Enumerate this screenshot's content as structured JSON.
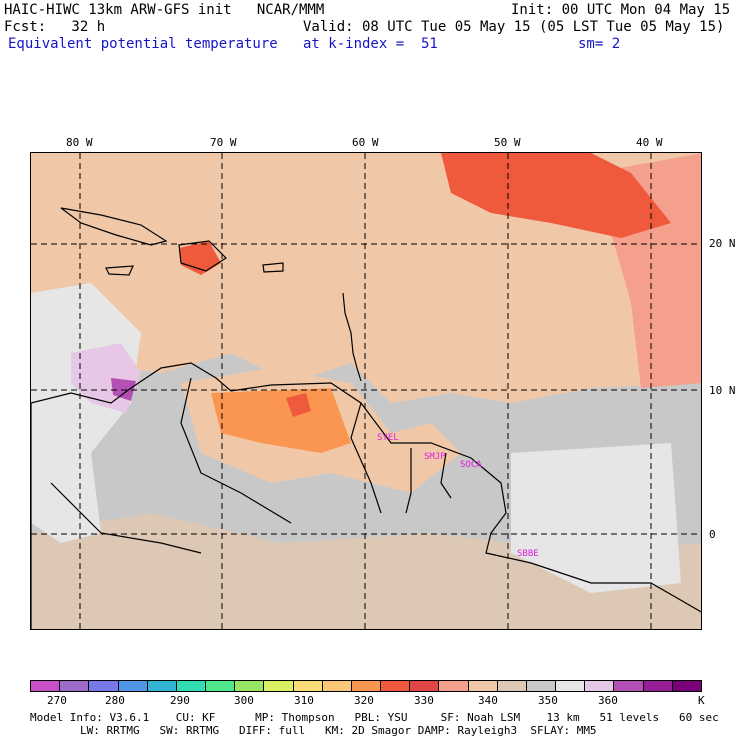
{
  "header": {
    "line1_left": "HAIC-HIWC 13km ARW-GFS init   NCAR/MMM",
    "line1_right": "Init: 00 UTC Mon 04 May 15",
    "fcst": "Fcst:   32 h",
    "valid": "Valid: 08 UTC Tue 05 May 15 (05 LST Tue 05 May 15)",
    "field": "Equivalent potential temperature",
    "level": "at k-index =  51",
    "smooth": "sm= 2"
  },
  "map": {
    "lon_labels": [
      "80 W",
      "70 W",
      "60 W",
      "50 W",
      "40 W"
    ],
    "lat_labels": [
      "20 N",
      "10 N",
      "0"
    ],
    "stations": [
      "SYEL",
      "SMJP",
      "SOCA",
      "SBBE"
    ]
  },
  "colorbar": {
    "colors": [
      "#c850c8",
      "#9c6cc8",
      "#7878e6",
      "#5096e6",
      "#32b4d2",
      "#32dcb4",
      "#50e68c",
      "#96e664",
      "#dcf064",
      "#fadc78",
      "#fac878",
      "#fa9650",
      "#f05a3c",
      "#e14646",
      "#f5a08c",
      "#f0c8a8",
      "#dcc8b4",
      "#c8c8c8",
      "#e6e6e6",
      "#e6c8e6",
      "#b450b4",
      "#961e96",
      "#780078"
    ],
    "labels": [
      "270",
      "280",
      "290",
      "300",
      "310",
      "320",
      "330",
      "340",
      "350",
      "360",
      "K"
    ]
  },
  "model_info": {
    "line1": "Model Info: V3.6.1    CU: KF      MP: Thompson   PBL: YSU     SF: Noah LSM    13 km   51 levels   60 sec",
    "line2": "LW: RRTMG   SW: RRTMG   DIFF: full   KM: 2D Smagor DAMP: Rayleigh3  SFLAY: MM5"
  }
}
